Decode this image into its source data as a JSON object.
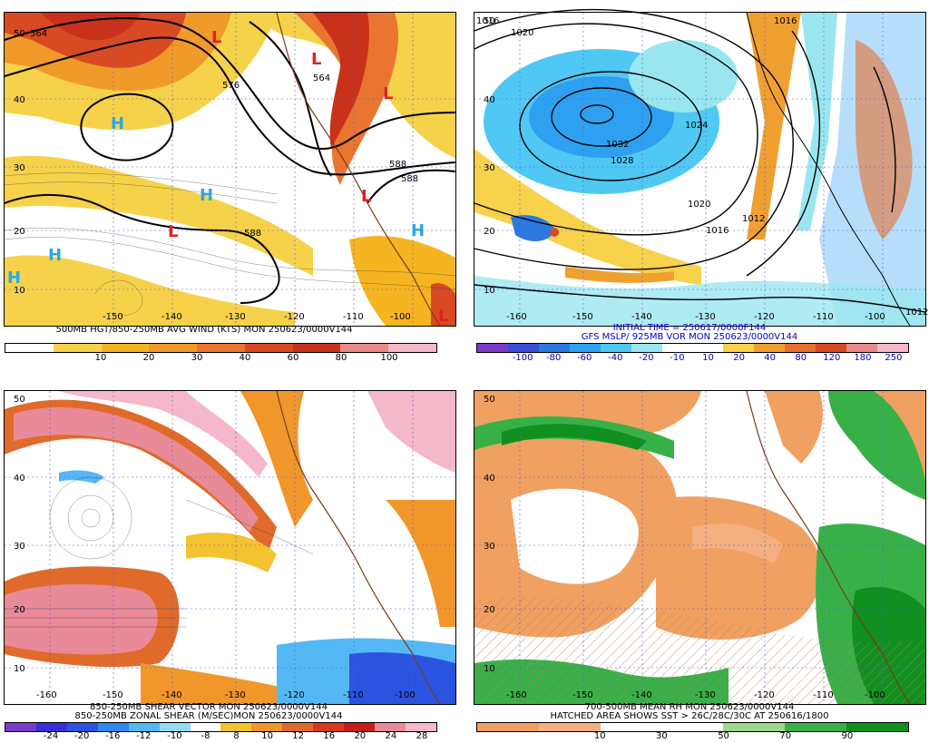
{
  "panels": [
    {
      "id": "p1",
      "caption": [
        "500MB HGT/850-250MB AVG WIND (KTS) MON 250623/0000V144"
      ],
      "colorbar": {
        "colors": [
          "#ffffff",
          "#f6d24a",
          "#f5b520",
          "#f09a2a",
          "#ea7530",
          "#d84a22",
          "#c8321a",
          "#e88a88",
          "#f4b8c8"
        ],
        "ticks": [
          "10",
          "20",
          "30",
          "40",
          "60",
          "80",
          "100"
        ]
      },
      "contour_labels": [
        "564",
        "576",
        "588",
        "588",
        "564",
        "588"
      ],
      "lat_labels": [
        "50",
        "40",
        "30",
        "20",
        "10"
      ],
      "lon_labels": [
        "-150",
        "-140",
        "-130",
        "-120",
        "-110",
        "-100"
      ],
      "symbols": [
        "H",
        "H",
        "L",
        "L",
        "L",
        "L",
        "H",
        "H",
        "H",
        "L",
        "L"
      ]
    },
    {
      "id": "p2",
      "caption": [
        "INITIAL TIME = 250617/0000F144",
        "GFS MSLP/ 925MB VOR MON 250623/0000V144"
      ],
      "colorbar": {
        "colors": [
          "#7a3cc8",
          "#3a4cd8",
          "#2a78e0",
          "#2ea0f0",
          "#50c8f4",
          "#9ae6f0",
          "#ffffff",
          "#ffffff",
          "#f7d24a",
          "#f0a030",
          "#e87030",
          "#d84a22",
          "#e88a88",
          "#f4b8c8"
        ],
        "ticks": [
          "-100",
          "-80",
          "-60",
          "-40",
          "-20",
          "-10",
          "10",
          "20",
          "40",
          "80",
          "120",
          "180",
          "250"
        ]
      },
      "contour_labels": [
        "1016",
        "1020",
        "1032",
        "1028",
        "1024",
        "1020",
        "1016",
        "1012",
        "1012",
        "1016"
      ],
      "lat_labels": [
        "50",
        "40",
        "30",
        "20",
        "10"
      ],
      "lon_labels": [
        "-160",
        "-150",
        "-140",
        "-130",
        "-120",
        "-110",
        "-100"
      ]
    },
    {
      "id": "p3",
      "caption": [
        "850-250MB SHEAR VECTOR MON 250623/0000V144",
        "850-250MB ZONAL SHEAR (M/SEC)MON 250623/0000V144"
      ],
      "colorbar": {
        "colors": [
          "#7a3cc8",
          "#3a2cd8",
          "#2a54e0",
          "#2e88f0",
          "#54b8f4",
          "#90dcf4",
          "#ffffff",
          "#f5c230",
          "#f0962a",
          "#e06a2a",
          "#d83a1e",
          "#c81e18",
          "#e88a98",
          "#f4b8c8"
        ],
        "ticks": [
          "-24",
          "-20",
          "-16",
          "-12",
          "-10",
          "-8",
          "8",
          "10",
          "12",
          "16",
          "20",
          "24",
          "28"
        ]
      },
      "lat_labels": [
        "50",
        "40",
        "30",
        "20",
        "10"
      ],
      "lon_labels": [
        "-160",
        "-150",
        "-140",
        "-130",
        "-120",
        "-110",
        "-100"
      ]
    },
    {
      "id": "p4",
      "caption": [
        "700-500MB MEAN RH MON 250623/0000V144",
        "HATCHED AREA SHOWS SST > 26C/28C/30C AT 250616/1800"
      ],
      "colorbar": {
        "colors": [
          "#f0a060",
          "#f4b080",
          "#ffffff",
          "#ffffff",
          "#9ed890",
          "#38b048",
          "#109020"
        ],
        "ticks": [
          "10",
          "30",
          "50",
          "70",
          "90"
        ]
      },
      "lat_labels": [
        "50",
        "40",
        "30",
        "20",
        "10"
      ],
      "lon_labels": [
        "-160",
        "-150",
        "-140",
        "-130",
        "-120",
        "-110",
        "-100"
      ]
    }
  ]
}
